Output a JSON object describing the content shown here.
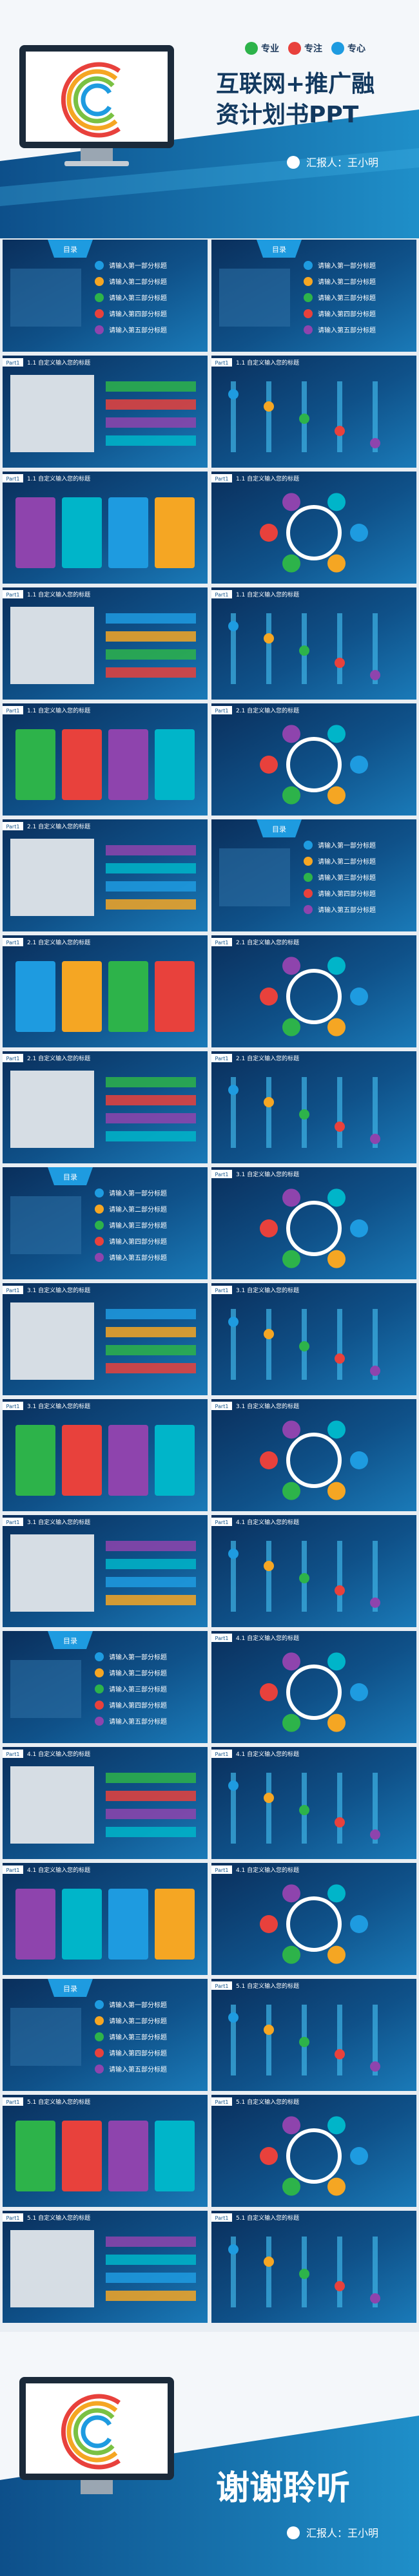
{
  "cover": {
    "badges": [
      "专业",
      "专注",
      "专心"
    ],
    "title_line1": "互联网+推广融",
    "title_line2": "资计划书PPT",
    "reporter": "汇报人：王小明"
  },
  "agenda_label": "目录",
  "agenda_items": [
    "请输入第一部分标题",
    "请输入第二部分标题",
    "请输入第三部分标题",
    "请输入第四部分标题",
    "请输入第五部分标题"
  ],
  "part_label": "Part1",
  "tiles": [
    {
      "kind": "agenda"
    },
    {
      "kind": "agenda"
    },
    {
      "kind": "content",
      "title": "1.1 自定义输入您的标题"
    },
    {
      "kind": "content",
      "title": "1.1 自定义输入您的标题"
    },
    {
      "kind": "content",
      "title": "1.1 自定义输入您的标题"
    },
    {
      "kind": "content",
      "title": "1.1 自定义输入您的标题"
    },
    {
      "kind": "content",
      "title": "1.1 自定义输入您的标题"
    },
    {
      "kind": "content",
      "title": "1.1 自定义输入您的标题"
    },
    {
      "kind": "content",
      "title": "1.1 自定义输入您的标题"
    },
    {
      "kind": "content",
      "title": "2.1 自定义输入您的标题"
    },
    {
      "kind": "content",
      "title": "2.1 自定义输入您的标题"
    },
    {
      "kind": "agenda"
    },
    {
      "kind": "content",
      "title": "2.1 自定义输入您的标题"
    },
    {
      "kind": "content",
      "title": "2.1 自定义输入您的标题"
    },
    {
      "kind": "content",
      "title": "2.1 自定义输入您的标题"
    },
    {
      "kind": "content",
      "title": "2.1 自定义输入您的标题"
    },
    {
      "kind": "agenda"
    },
    {
      "kind": "content",
      "title": "3.1 自定义输入您的标题"
    },
    {
      "kind": "content",
      "title": "3.1 自定义输入您的标题"
    },
    {
      "kind": "content",
      "title": "3.1 自定义输入您的标题"
    },
    {
      "kind": "content",
      "title": "3.1 自定义输入您的标题"
    },
    {
      "kind": "content",
      "title": "3.1 自定义输入您的标题"
    },
    {
      "kind": "content",
      "title": "3.1 自定义输入您的标题"
    },
    {
      "kind": "content",
      "title": "4.1 自定义输入您的标题"
    },
    {
      "kind": "agenda"
    },
    {
      "kind": "content",
      "title": "4.1 自定义输入您的标题"
    },
    {
      "kind": "content",
      "title": "4.1 自定义输入您的标题"
    },
    {
      "kind": "content",
      "title": "4.1 自定义输入您的标题"
    },
    {
      "kind": "content",
      "title": "4.1 自定义输入您的标题"
    },
    {
      "kind": "content",
      "title": "4.1 自定义输入您的标题"
    },
    {
      "kind": "agenda"
    },
    {
      "kind": "content",
      "title": "5.1 自定义输入您的标题"
    },
    {
      "kind": "content",
      "title": "5.1 自定义输入您的标题"
    },
    {
      "kind": "content",
      "title": "5.1 自定义输入您的标题"
    },
    {
      "kind": "content",
      "title": "5.1 自定义输入您的标题"
    },
    {
      "kind": "content",
      "title": "5.1 自定义输入您的标题"
    }
  ],
  "ending": {
    "thanks": "谢谢聆听",
    "reporter": "汇报人：王小明"
  }
}
